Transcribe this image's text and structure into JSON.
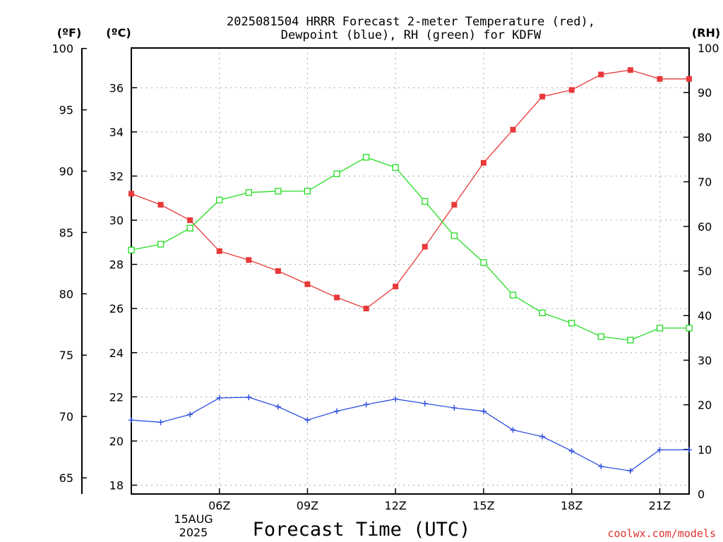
{
  "chart_data": {
    "type": "line",
    "title_lines": [
      "2025081504 HRRR Forecast 2-meter Temperature (red),",
      "Dewpoint (blue), RH (green) for KDFW"
    ],
    "xlabel": "Forecast Time (UTC)",
    "x_hours": [
      3,
      4,
      5,
      6,
      7,
      8,
      9,
      10,
      11,
      12,
      13,
      14,
      15,
      16,
      17,
      18,
      19,
      20,
      21,
      22
    ],
    "x_range": [
      3,
      22
    ],
    "x_ticks": [
      {
        "hour": 6,
        "label": "06Z"
      },
      {
        "hour": 9,
        "label": "09Z"
      },
      {
        "hour": 12,
        "label": "12Z"
      },
      {
        "hour": 15,
        "label": "15Z"
      },
      {
        "hour": 18,
        "label": "18Z"
      },
      {
        "hour": 21,
        "label": "21Z"
      }
    ],
    "date_label": [
      "15AUG",
      "2025"
    ],
    "axes": {
      "celsius": {
        "unit_label": "(ºC)",
        "range": [
          17.6,
          37.8
        ],
        "ticks": [
          18,
          20,
          22,
          24,
          26,
          28,
          30,
          32,
          34,
          36
        ]
      },
      "fahrenheit": {
        "unit_label": "(ºF)",
        "range": [
          63.68,
          100.04
        ],
        "ticks": [
          65,
          70,
          75,
          80,
          85,
          90,
          95,
          100
        ]
      },
      "rh": {
        "unit_label": "(RH)",
        "range": [
          0,
          100
        ],
        "ticks": [
          0,
          10,
          20,
          30,
          40,
          50,
          60,
          70,
          80,
          90,
          100
        ]
      }
    },
    "series": [
      {
        "key": "temperature",
        "axis": "celsius",
        "color": "#e83838",
        "marker": "filled-square",
        "values": [
          31.2,
          30.7,
          30.0,
          28.6,
          28.2,
          27.7,
          27.1,
          26.5,
          26.0,
          27.0,
          28.8,
          30.7,
          32.6,
          34.1,
          35.6,
          35.9,
          36.6,
          36.8,
          36.4,
          36.4
        ]
      },
      {
        "key": "dewpoint",
        "axis": "celsius",
        "color": "#3050e0",
        "marker": "plus",
        "values": [
          20.95,
          20.85,
          21.2,
          21.95,
          21.98,
          21.55,
          20.95,
          21.35,
          21.65,
          21.9,
          21.7,
          21.5,
          21.35,
          20.5,
          20.2,
          19.55,
          18.85,
          18.65,
          19.6,
          19.6
        ]
      },
      {
        "key": "rh",
        "axis": "rh",
        "color": "#22dd22",
        "marker": "open-square",
        "values": [
          54.7,
          56.0,
          59.6,
          65.9,
          67.6,
          67.9,
          67.9,
          71.8,
          75.5,
          73.2,
          65.6,
          57.9,
          51.9,
          44.6,
          40.6,
          38.3,
          35.3,
          34.5,
          37.2,
          37.2
        ]
      }
    ]
  },
  "credit": "coolwx.com/models"
}
